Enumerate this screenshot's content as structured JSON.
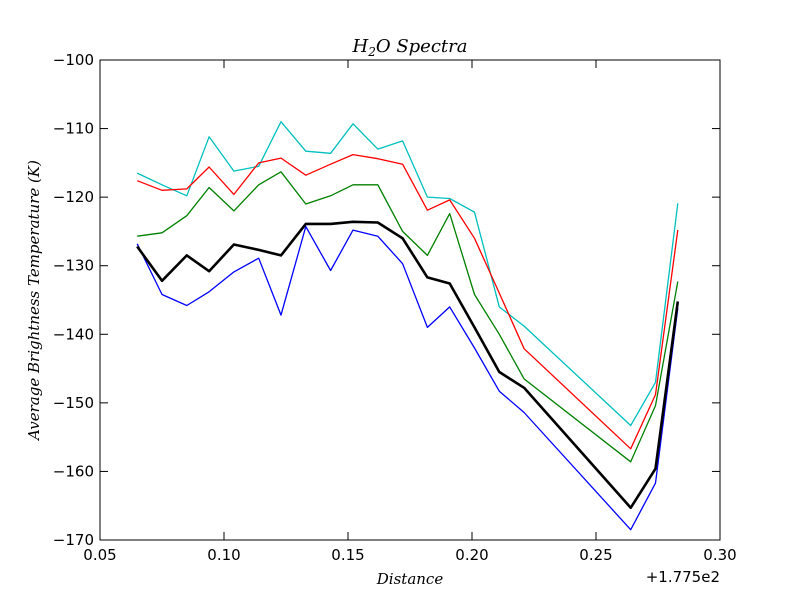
{
  "chart_data": {
    "type": "line",
    "title": "H",
    "title_subscript": "2",
    "title_rest": "O Spectra",
    "xlabel": "Distance",
    "ylabel": "Average Brightness Temperature (K)",
    "x_offset_label": "+1.775e2",
    "xlim": [
      0.05,
      0.3
    ],
    "ylim": [
      -170,
      -100
    ],
    "x_ticks": [
      0.05,
      0.1,
      0.15,
      0.2,
      0.25,
      0.3
    ],
    "x_tick_labels": [
      "0.05",
      "0.10",
      "0.15",
      "0.20",
      "0.25",
      "0.30"
    ],
    "y_ticks": [
      -170,
      -160,
      -150,
      -140,
      -130,
      -120,
      -110,
      -100
    ],
    "y_tick_labels": [
      "−170",
      "−160",
      "−150",
      "−140",
      "−130",
      "−120",
      "−110",
      "−100"
    ],
    "grid": false,
    "legend": false,
    "x": [
      0.065,
      0.075,
      0.085,
      0.094,
      0.104,
      0.114,
      0.123,
      0.133,
      0.143,
      0.152,
      0.162,
      0.172,
      0.182,
      0.191,
      0.201,
      0.211,
      0.221,
      0.264,
      0.274,
      0.283
    ],
    "series": [
      {
        "color": "#00bfbf",
        "width": 1.3,
        "values": [
          -116.5,
          -118.2,
          -119.8,
          -111.2,
          -116.2,
          -115.5,
          -109.0,
          -113.3,
          -113.6,
          -109.3,
          -113.0,
          -111.8,
          -120.0,
          -120.2,
          -122.2,
          -136.0,
          -138.8,
          -153.3,
          -147.0,
          -120.9
        ]
      },
      {
        "color": "#ff0000",
        "width": 1.3,
        "values": [
          -117.6,
          -119.0,
          -118.8,
          -115.6,
          -119.6,
          -115.0,
          -114.3,
          -116.8,
          -115.2,
          -113.8,
          -114.4,
          -115.2,
          -121.9,
          -120.4,
          -126.0,
          -134.0,
          -142.1,
          -156.7,
          -148.8,
          -124.8
        ]
      },
      {
        "color": "#008000",
        "width": 1.3,
        "values": [
          -125.7,
          -125.2,
          -122.7,
          -118.6,
          -122.0,
          -118.2,
          -116.3,
          -121.0,
          -119.8,
          -118.2,
          -118.2,
          -125.0,
          -128.5,
          -122.4,
          -134.2,
          -140.0,
          -146.5,
          -158.6,
          -150.4,
          -132.3
        ]
      },
      {
        "color": "#0000ff",
        "width": 1.3,
        "values": [
          -126.8,
          -134.2,
          -135.8,
          -133.8,
          -130.9,
          -128.9,
          -137.2,
          -124.3,
          -130.7,
          -124.8,
          -125.7,
          -129.7,
          -139.0,
          -136.0,
          -142.0,
          -148.3,
          -151.4,
          -168.5,
          -161.7,
          -136.2
        ]
      },
      {
        "color": "#000000",
        "width": 2.6,
        "values": [
          -127.2,
          -132.2,
          -128.5,
          -130.8,
          -126.9,
          -127.7,
          -128.5,
          -123.9,
          -123.9,
          -123.6,
          -123.7,
          -126.0,
          -131.7,
          -132.6,
          -139.0,
          -145.5,
          -147.8,
          -165.3,
          -159.6,
          -135.2
        ]
      }
    ]
  }
}
